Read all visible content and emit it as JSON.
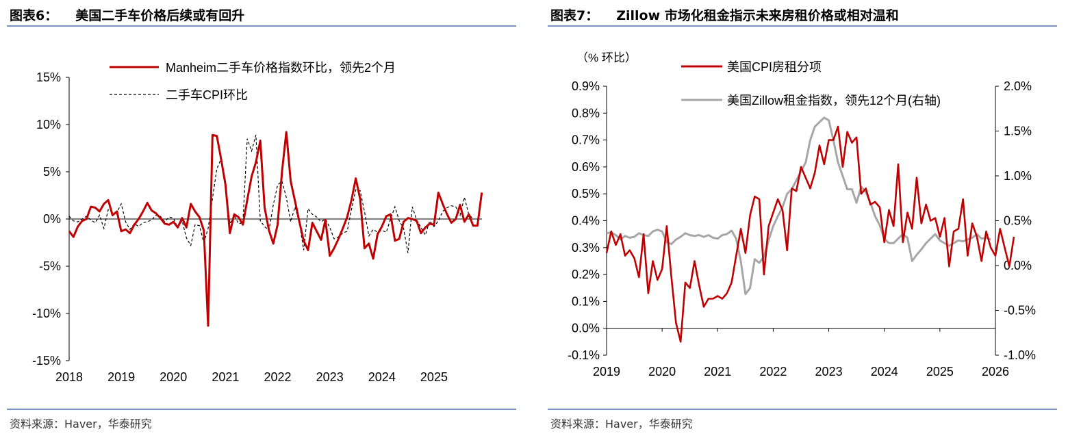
{
  "panels": [
    {
      "title_prefix": "图表6：",
      "title_text": "美国二手车价格后续或有回升",
      "source": "资料来源：Haver，华泰研究"
    },
    {
      "title_prefix": "图表7：",
      "title_text": "Zillow 市场化租金指示未来房租价格或相对温和",
      "source": "资料来源：Haver，华泰研究"
    }
  ],
  "colors": {
    "red": "#c00000",
    "gray": "#a6a6a6",
    "black": "#000000",
    "rule": "#7a93c5"
  },
  "chart_data": [
    {
      "type": "line",
      "title": "",
      "ylim": [
        -15,
        15
      ],
      "yticks": [
        "15%",
        "10%",
        "5%",
        "0%",
        "-5%",
        "-10%",
        "-15%"
      ],
      "xlim": [
        2018,
        2025.92
      ],
      "xticks": [
        "2018",
        "2019",
        "2020",
        "2021",
        "2022",
        "2023",
        "2024",
        "2025"
      ],
      "legend_position": "top",
      "series": [
        {
          "name": "Manheim二手车价格指数环比，领先2个月",
          "style": "solid-red",
          "start": 2018.0,
          "step_months": 1,
          "values": [
            -1.3,
            -1.9,
            -0.8,
            -0.2,
            0,
            1.3,
            1.2,
            0.8,
            1.6,
            2.0,
            0.4,
            0.8,
            -1.3,
            -1.1,
            -1.5,
            -0.6,
            0,
            0.8,
            1.7,
            0.9,
            0.6,
            0.1,
            -0.5,
            -0.6,
            -0.3,
            -0.9,
            0.1,
            -0.9,
            1.6,
            0.8,
            0.2,
            -1.2,
            -11.3,
            8.9,
            8.8,
            6.3,
            3.6,
            -1.5,
            0.5,
            0.2,
            -0.6,
            2.0,
            4.5,
            6.0,
            8.3,
            1.2,
            -1.2,
            -2.6,
            -0.6,
            5.0,
            9.2,
            4.0,
            1.9,
            -0.3,
            -2.3,
            -3.3,
            -0.4,
            -1.3,
            -2.2,
            -0.1,
            -3.9,
            -3.1,
            -2.1,
            -1.0,
            0.2,
            2.0,
            4.3,
            2.1,
            -3.1,
            -2.6,
            -4.2,
            -1.6,
            -0.8,
            0.3,
            0.5,
            -2.3,
            -2.1,
            -0.3,
            0.1,
            0,
            -0.2,
            -1.5,
            -0.9,
            -0.5,
            -0.6,
            2.8,
            1.6,
            0.5,
            -0.4,
            0,
            1.5,
            -0.3,
            0.5,
            -0.7,
            -0.7,
            2.8
          ]
        },
        {
          "name": "二手车CPI环比",
          "style": "dashed-black",
          "start": 2018.0,
          "step_months": 1,
          "values": [
            0.3,
            -0.2,
            -0.3,
            0,
            0.3,
            -0.1,
            -0.4,
            0.4,
            -1.0,
            1.0,
            0.7,
            0.7,
            1.6,
            -0.3,
            -1.1,
            -0.5,
            -0.8,
            -0.4,
            -0.3,
            -0.1,
            0.4,
            0.3,
            -0.3,
            0.2,
            0.1,
            -0.9,
            -0.2,
            -2.0,
            -2.8,
            -0.6,
            -0.7,
            -2.5,
            -1.0,
            2.2,
            5.3,
            6.4,
            3.8,
            -0.5,
            0.4,
            -0.5,
            -0.4,
            8.5,
            7.2,
            8.9,
            -0.2,
            -0.8,
            -1.2,
            1.5,
            3.6,
            4.0,
            2.3,
            -0.3,
            1.3,
            -0.4,
            -3.3,
            1.1,
            0.5,
            0.2,
            -0.3,
            0,
            -0.9,
            -2.1,
            -1.9,
            -1.5,
            -1.3,
            1.0,
            3.1,
            3.0,
            0.8,
            -1.8,
            -1.1,
            -1.4,
            -1.2,
            -1.4,
            0,
            1.3,
            -0.2,
            -1.0,
            -3.6,
            1.3,
            -0.1,
            -0.9,
            -1.7,
            -0.2,
            -0.8,
            -0.2,
            0.8,
            1.2,
            1.4,
            1.3,
            0.4,
            2.3,
            0.5,
            0
          ]
        }
      ]
    },
    {
      "type": "line",
      "title": "",
      "ylabel": "（% 环比）",
      "ylim": [
        -0.1,
        0.9
      ],
      "yticks": [
        "0.9%",
        "0.8%",
        "0.7%",
        "0.6%",
        "0.5%",
        "0.4%",
        "0.3%",
        "0.2%",
        "0.1%",
        "0.0%",
        "-0.1%"
      ],
      "y2lim": [
        -1.0,
        2.0
      ],
      "y2ticks": [
        "2.0%",
        "1.5%",
        "1.0%",
        "0.5%",
        "0.0%",
        "-0.5%",
        "-1.0%"
      ],
      "xlim": [
        2019,
        2026
      ],
      "xticks": [
        "2019",
        "2020",
        "2021",
        "2022",
        "2023",
        "2024",
        "2025",
        "2026"
      ],
      "legend_position": "top",
      "series": [
        {
          "name": "美国CPI房租分项",
          "axis": "left",
          "style": "solid-red",
          "start": 2019.0,
          "step_months": 1,
          "values": [
            0.28,
            0.36,
            0.31,
            0.35,
            0.27,
            0.29,
            0.26,
            0.19,
            0.35,
            0.13,
            0.25,
            0.18,
            0.22,
            0.38,
            0.19,
            0.02,
            -0.05,
            0.17,
            0.15,
            0.25,
            0.16,
            0.08,
            0.11,
            0.11,
            0.12,
            0.11,
            0.13,
            0.17,
            0.27,
            0.37,
            0.28,
            0.42,
            0.49,
            0.48,
            0.2,
            0.38,
            0.43,
            0.48,
            0.44,
            0.29,
            0.52,
            0.51,
            0.6,
            0.56,
            0.52,
            0.58,
            0.68,
            0.61,
            0.7,
            0.7,
            0.75,
            0.6,
            0.73,
            0.69,
            0.71,
            0.5,
            0.52,
            0.46,
            0.47,
            0.45,
            0.32,
            0.44,
            0.38,
            0.61,
            0.32,
            0.43,
            0.37,
            0.56,
            0.39,
            0.46,
            0.4,
            0.41,
            0.34,
            0.41,
            0.23,
            0.36,
            0.37,
            0.48,
            0.27,
            0.39,
            0.34,
            0.25,
            0.36,
            0.3,
            0.27,
            0.37,
            0.3,
            0.23,
            0.34
          ]
        },
        {
          "name": "美国Zillow租金指数，领先12个月(右轴)",
          "axis": "right",
          "style": "solid-gray",
          "start": 2019.0,
          "step_months": 1,
          "values": [
            0.36,
            0.37,
            0.34,
            0.29,
            0.33,
            0.31,
            0.32,
            0.36,
            0.34,
            0.33,
            0.38,
            0.4,
            0.38,
            0.26,
            0.24,
            0.29,
            0.32,
            0.36,
            0.34,
            0.33,
            0.34,
            0.32,
            0.34,
            0.31,
            0.3,
            0.34,
            0.35,
            0.39,
            0.3,
            0.05,
            -0.32,
            -0.25,
            0.07,
            0.03,
            0.1,
            0.28,
            0.44,
            0.55,
            0.65,
            0.8,
            0.85,
            0.95,
            1.05,
            1.15,
            1.4,
            1.55,
            1.6,
            1.65,
            1.62,
            1.4,
            1.15,
            1.0,
            0.85,
            0.85,
            0.7,
            0.88,
            0.82,
            0.7,
            0.55,
            0.45,
            0.3,
            0.25,
            0.25,
            0.3,
            0.35,
            0.31,
            0.05,
            0.12,
            0.18,
            0.25,
            0.3,
            0.35,
            0.28,
            0.25,
            0.22,
            0.25,
            0.28,
            0.27,
            0.29,
            0.31,
            0.35,
            0.3,
            0.31,
            0.29
          ]
        }
      ]
    }
  ]
}
